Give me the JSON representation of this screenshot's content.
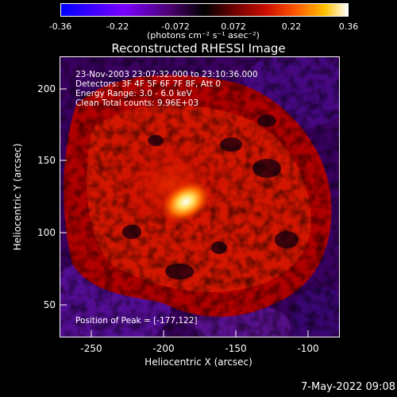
{
  "colorbar": {
    "ticks": [
      "-0.36",
      "-0.22",
      "-0.072",
      "0.072",
      "0.22",
      "0.36"
    ],
    "units": "(photons cm⁻² s⁻¹ asec⁻²)",
    "colors": [
      "#0000ff",
      "#7a00ff",
      "#4a0070",
      "#000000",
      "#5a0000",
      "#c00000",
      "#ff4000",
      "#ffb000",
      "#ffffff"
    ]
  },
  "title": "Reconstructed RHESSI Image",
  "info": {
    "line1": "23-Nov-2003 23:07:32.000 to 23:10:36.000",
    "line2": "Detectors: 3F 4F 5F 6F 7F 8F, Att 0",
    "line3": "Energy Range: 3.0 - 6.0 keV",
    "line4": "Clean     Total counts: 9.96E+03",
    "peak": "Position of Peak = [-177,122]"
  },
  "axes": {
    "xlabel": "Heliocentric X (arcsec)",
    "ylabel": "Heliocentric Y (arcsec)",
    "xticks": [
      "-250",
      "-200",
      "-150",
      "-100"
    ],
    "yticks": [
      "200",
      "150",
      "100",
      "50"
    ],
    "xlim": [
      -268,
      -73
    ],
    "ylim": [
      27,
      222
    ]
  },
  "peak": {
    "x": -177,
    "y": 122
  },
  "footer": {
    "date": "7-May-2022 09:08"
  }
}
